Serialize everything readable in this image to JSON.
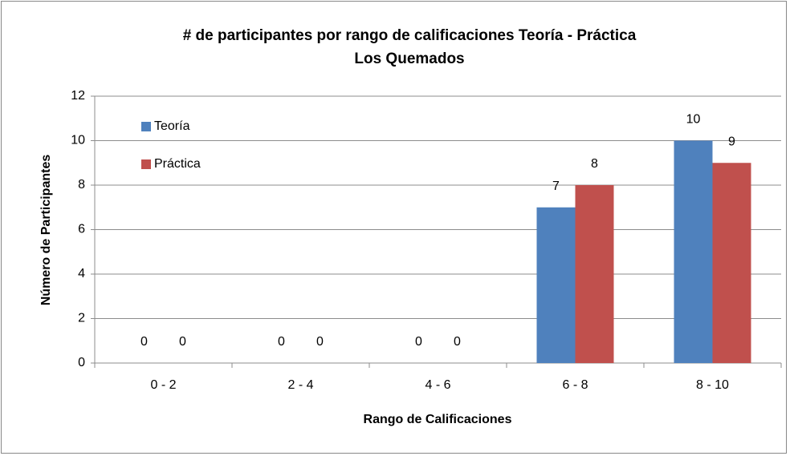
{
  "chart_data": {
    "type": "bar",
    "title": "# de participantes por rango de calificaciones Teoría - Práctica",
    "subtitle": "Los Quemados",
    "x_label": "Rango de Calificaciones",
    "y_label": "Número de Participantes",
    "categories": [
      "0 - 2",
      "2 - 4",
      "4 - 6",
      "6 - 8",
      "8 - 10"
    ],
    "series": [
      {
        "name": "Teoría",
        "color": "#4f81bd",
        "values": [
          0,
          0,
          0,
          7,
          10
        ]
      },
      {
        "name": "Práctica",
        "color": "#c0504d",
        "values": [
          0,
          0,
          0,
          8,
          9
        ]
      }
    ],
    "ylim": [
      0,
      12
    ],
    "yticks": [
      0,
      2,
      4,
      6,
      8,
      10,
      12
    ],
    "grid": true,
    "legend": "top-left"
  }
}
